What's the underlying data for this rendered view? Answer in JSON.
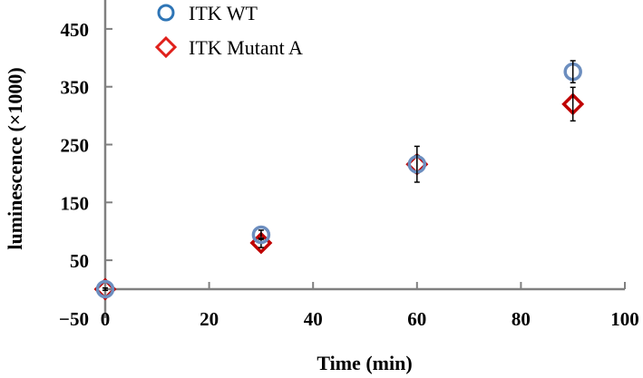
{
  "chart_data": {
    "type": "scatter",
    "title": "",
    "xlabel": "Time (min)",
    "ylabel": "luminescence (×1000)",
    "xlim": [
      0,
      100
    ],
    "ylim": [
      -50,
      500
    ],
    "xticks": [
      0,
      20,
      40,
      60,
      80,
      100
    ],
    "yticks": [
      -50,
      50,
      150,
      250,
      350,
      450
    ],
    "grid": false,
    "legend_position": "top-left",
    "series": [
      {
        "name": "ITK WT",
        "marker": "circle",
        "color": "#2E75B6",
        "fill_color": "#6C8EBF",
        "x": [
          0,
          30,
          60,
          90
        ],
        "y": [
          0,
          94,
          216,
          376
        ],
        "error": [
          2,
          8,
          31,
          19
        ]
      },
      {
        "name": "ITK Mutant A",
        "marker": "diamond",
        "color": "#E0201B",
        "fill_color": "#C00000",
        "x": [
          0,
          30,
          60,
          90
        ],
        "y": [
          0,
          80,
          216,
          320
        ],
        "error": [
          2,
          8,
          15,
          29
        ]
      }
    ]
  }
}
